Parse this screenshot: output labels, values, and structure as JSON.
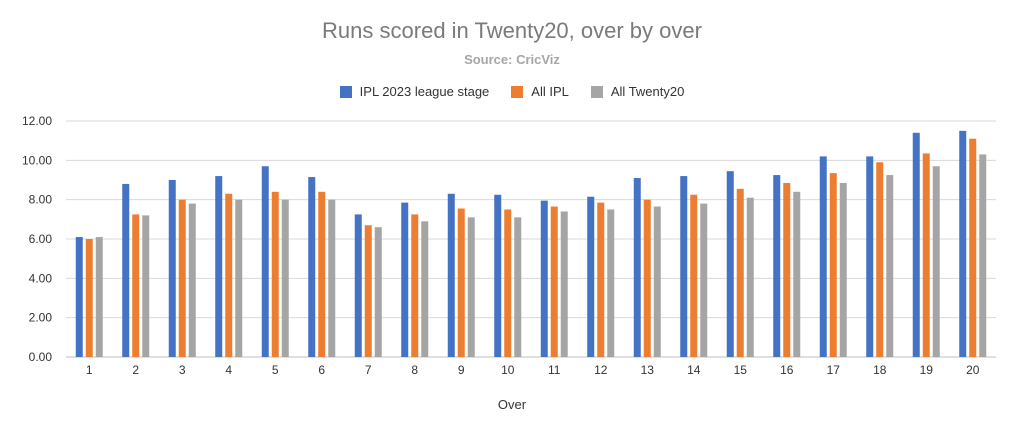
{
  "chart_data": {
    "type": "bar",
    "title": "Runs scored in Twenty20, over by over",
    "subtitle": "Source: CricViz",
    "xlabel": "Over",
    "ylabel": "",
    "ylim": [
      0,
      12
    ],
    "yticks": [
      "0.00",
      "2.00",
      "4.00",
      "6.00",
      "8.00",
      "10.00",
      "12.00"
    ],
    "grid": true,
    "legend_position": "top-center",
    "categories": [
      "1",
      "2",
      "3",
      "4",
      "5",
      "6",
      "7",
      "8",
      "9",
      "10",
      "11",
      "12",
      "13",
      "14",
      "15",
      "16",
      "17",
      "18",
      "19",
      "20"
    ],
    "series": [
      {
        "name": "IPL 2023 league stage",
        "color": "#4472c4",
        "values": [
          6.1,
          8.8,
          9.0,
          9.2,
          9.7,
          9.15,
          7.25,
          7.85,
          8.3,
          8.25,
          7.95,
          8.15,
          9.1,
          9.2,
          9.45,
          9.25,
          10.2,
          10.2,
          11.4,
          11.5
        ]
      },
      {
        "name": "All IPL",
        "color": "#ed7d31",
        "values": [
          6.0,
          7.25,
          8.0,
          8.3,
          8.4,
          8.4,
          6.7,
          7.25,
          7.55,
          7.5,
          7.65,
          7.85,
          8.0,
          8.25,
          8.55,
          8.85,
          9.35,
          9.9,
          10.35,
          11.1
        ]
      },
      {
        "name": "All Twenty20",
        "color": "#a5a5a5",
        "values": [
          6.1,
          7.2,
          7.8,
          8.0,
          8.0,
          8.0,
          6.6,
          6.9,
          7.1,
          7.1,
          7.4,
          7.5,
          7.65,
          7.8,
          8.1,
          8.4,
          8.85,
          9.25,
          9.7,
          10.3
        ]
      }
    ]
  }
}
